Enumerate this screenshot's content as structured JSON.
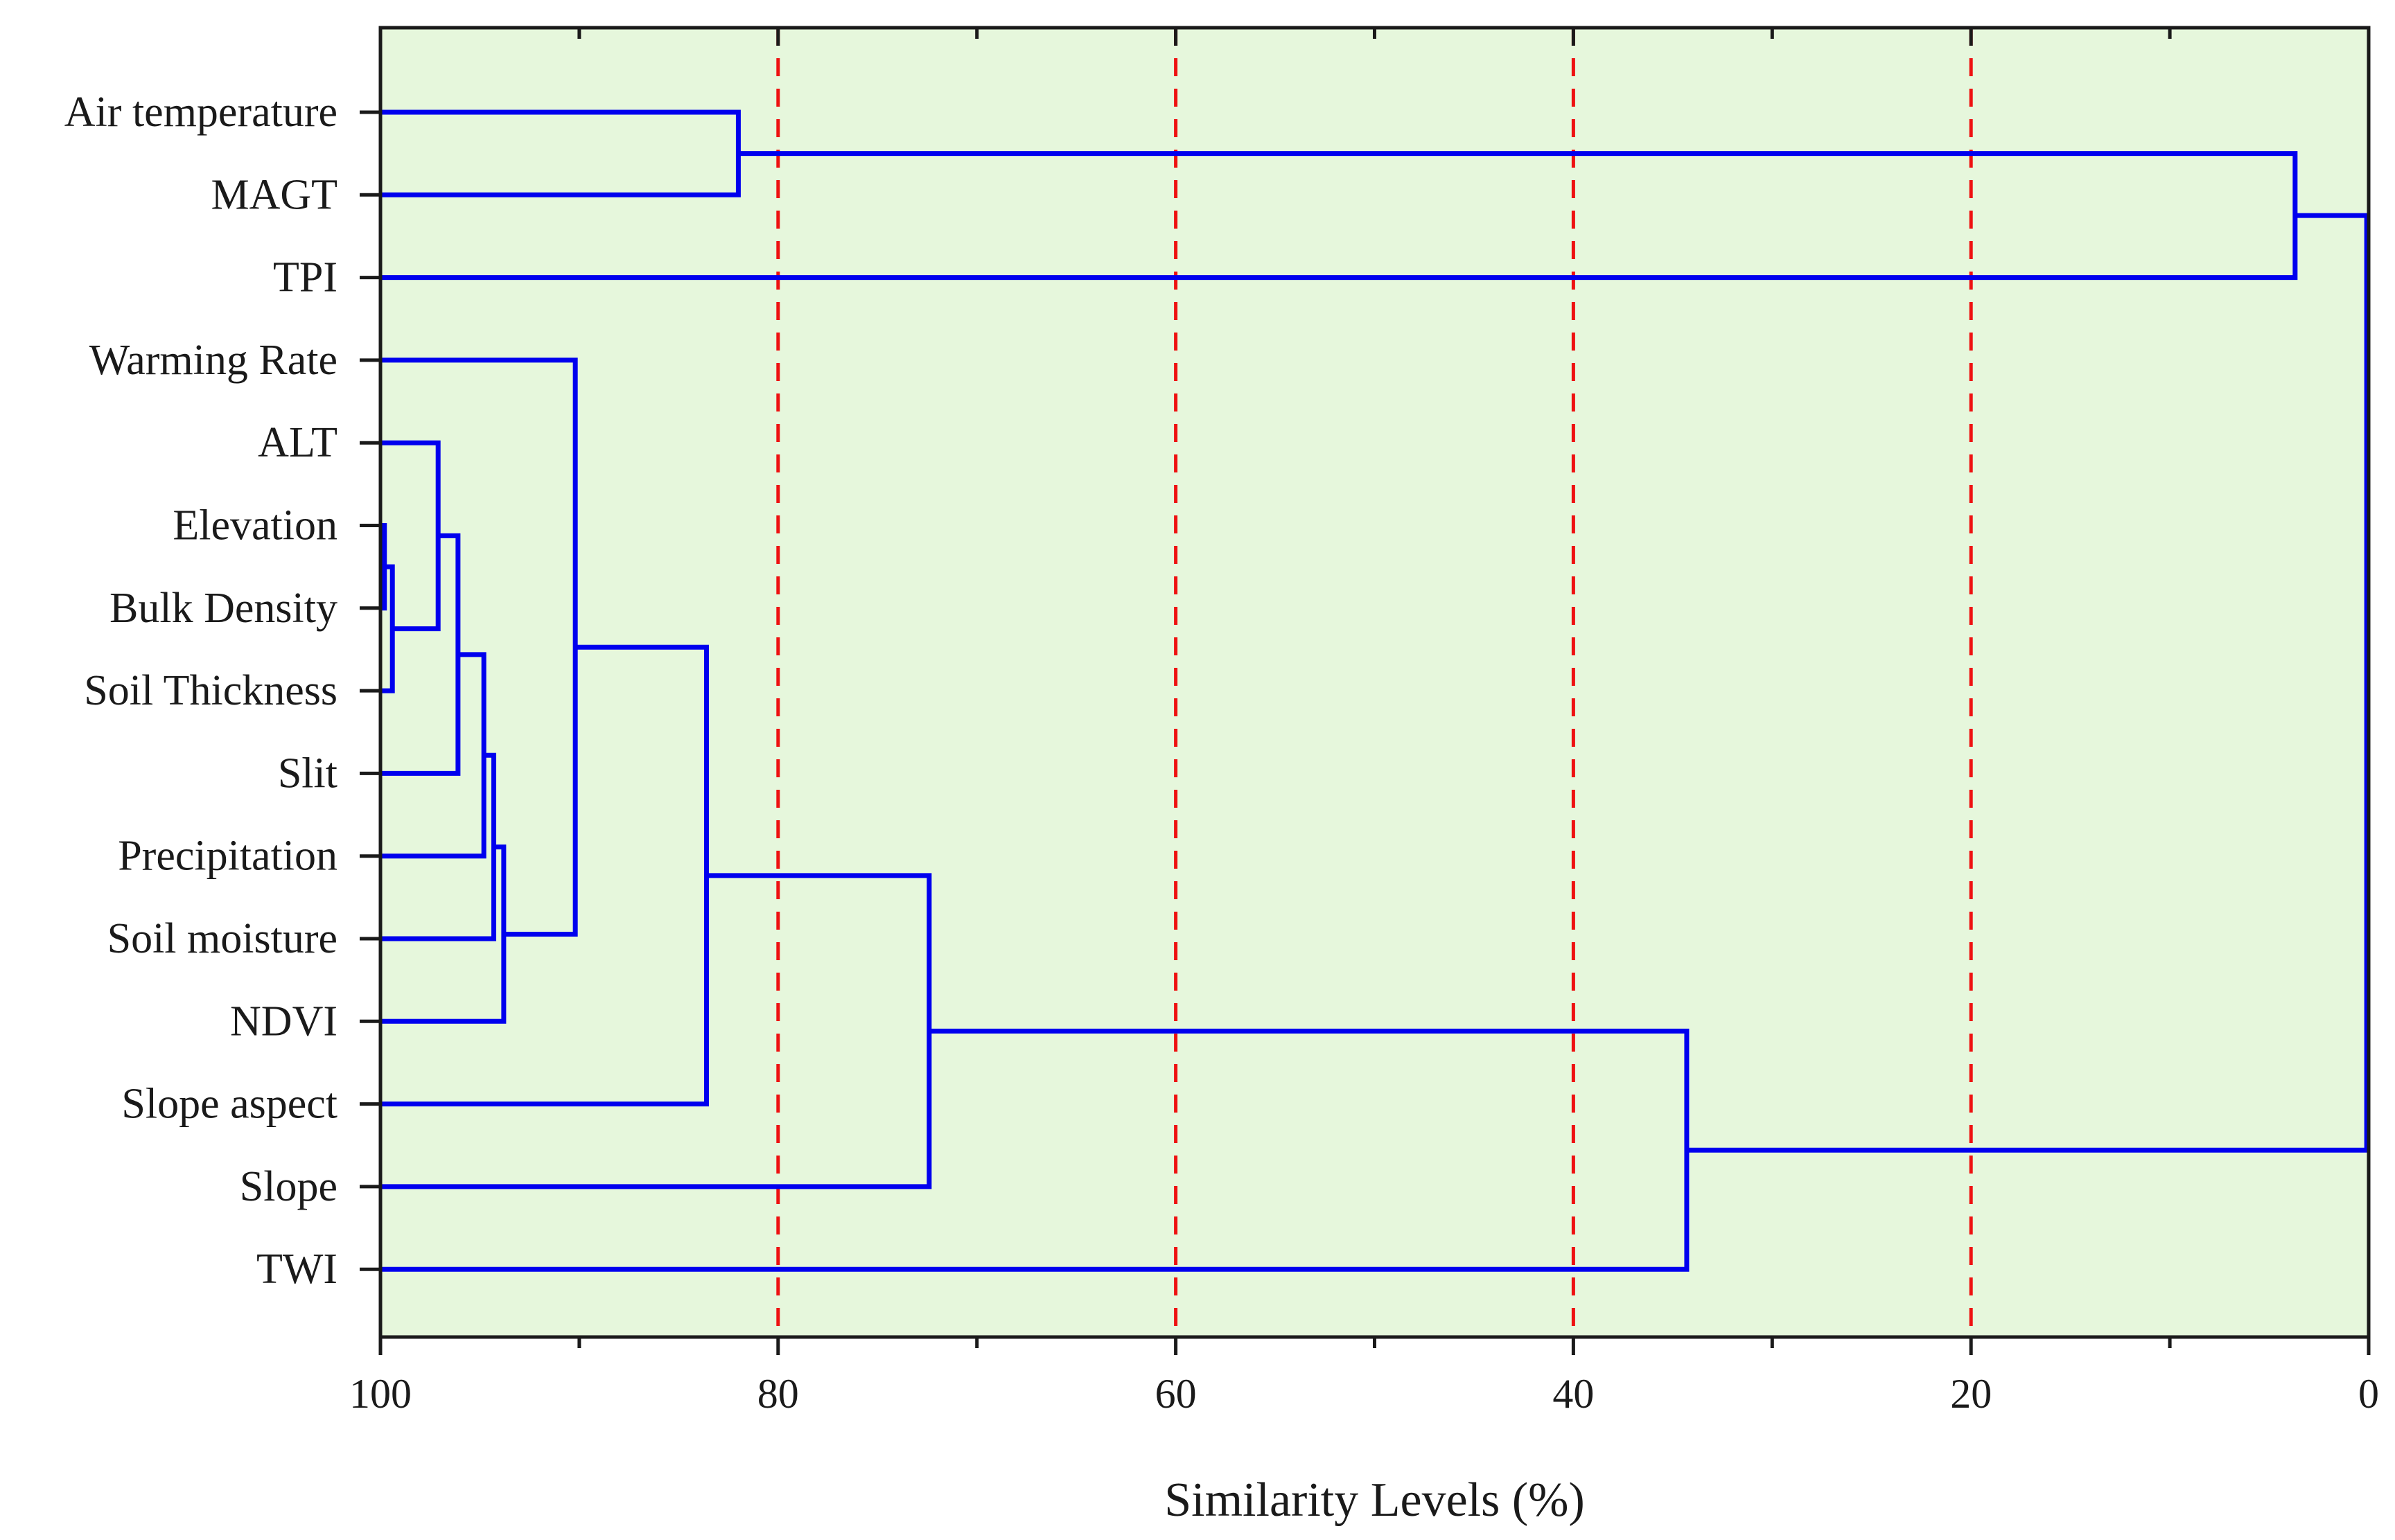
{
  "chart_data": {
    "type": "dendrogram",
    "title": "",
    "xlabel": "Similarity Levels (%)",
    "ylabel": "",
    "xlim": [
      100,
      0
    ],
    "x_ticks": [
      100,
      80,
      60,
      40,
      20,
      0
    ],
    "x_minor_ticks": [
      90,
      70,
      50,
      30,
      10
    ],
    "reference_lines": [
      80,
      60,
      40,
      20
    ],
    "background": "#e6f7dc",
    "line_color": "#0000ee",
    "reference_line_color": "#ee1111",
    "leaves": [
      "Air temperature",
      "MAGT",
      "TPI",
      "Warming Rate",
      "ALT",
      "Elevation",
      "Bulk Density",
      "Soil Thickness",
      "Slit",
      "Precipitation",
      "Soil moisture",
      "NDVI",
      "Slope aspect",
      "Slope",
      "TWI"
    ],
    "merges": [
      {
        "id": "C1",
        "left": "Elevation",
        "right": "Bulk Density",
        "similarity": 99.8
      },
      {
        "id": "C2",
        "left": "C1",
        "right": "Soil Thickness",
        "similarity": 99.4
      },
      {
        "id": "C3",
        "left": "ALT",
        "right": "C2",
        "similarity": 97.1
      },
      {
        "id": "C4",
        "left": "C3",
        "right": "Slit",
        "similarity": 96.1
      },
      {
        "id": "C5",
        "left": "C4",
        "right": "Precipitation",
        "similarity": 94.8
      },
      {
        "id": "C6",
        "left": "C5",
        "right": "Soil moisture",
        "similarity": 94.3
      },
      {
        "id": "C7",
        "left": "C6",
        "right": "NDVI",
        "similarity": 93.8
      },
      {
        "id": "C8",
        "left": "Warming Rate",
        "right": "C7",
        "similarity": 90.2
      },
      {
        "id": "C9",
        "left": "C8",
        "right": "Slope aspect",
        "similarity": 83.6
      },
      {
        "id": "C10",
        "left": "C9",
        "right": "Slope",
        "similarity": 72.4
      },
      {
        "id": "C11",
        "left": "C10",
        "right": "TWI",
        "similarity": 34.3
      },
      {
        "id": "C12",
        "left": "Air temperature",
        "right": "MAGT",
        "similarity": 82.0
      },
      {
        "id": "C13",
        "left": "C12",
        "right": "TPI",
        "similarity": 3.7
      },
      {
        "id": "C14",
        "left": "C13",
        "right": "C11",
        "similarity": 0.1
      }
    ]
  }
}
